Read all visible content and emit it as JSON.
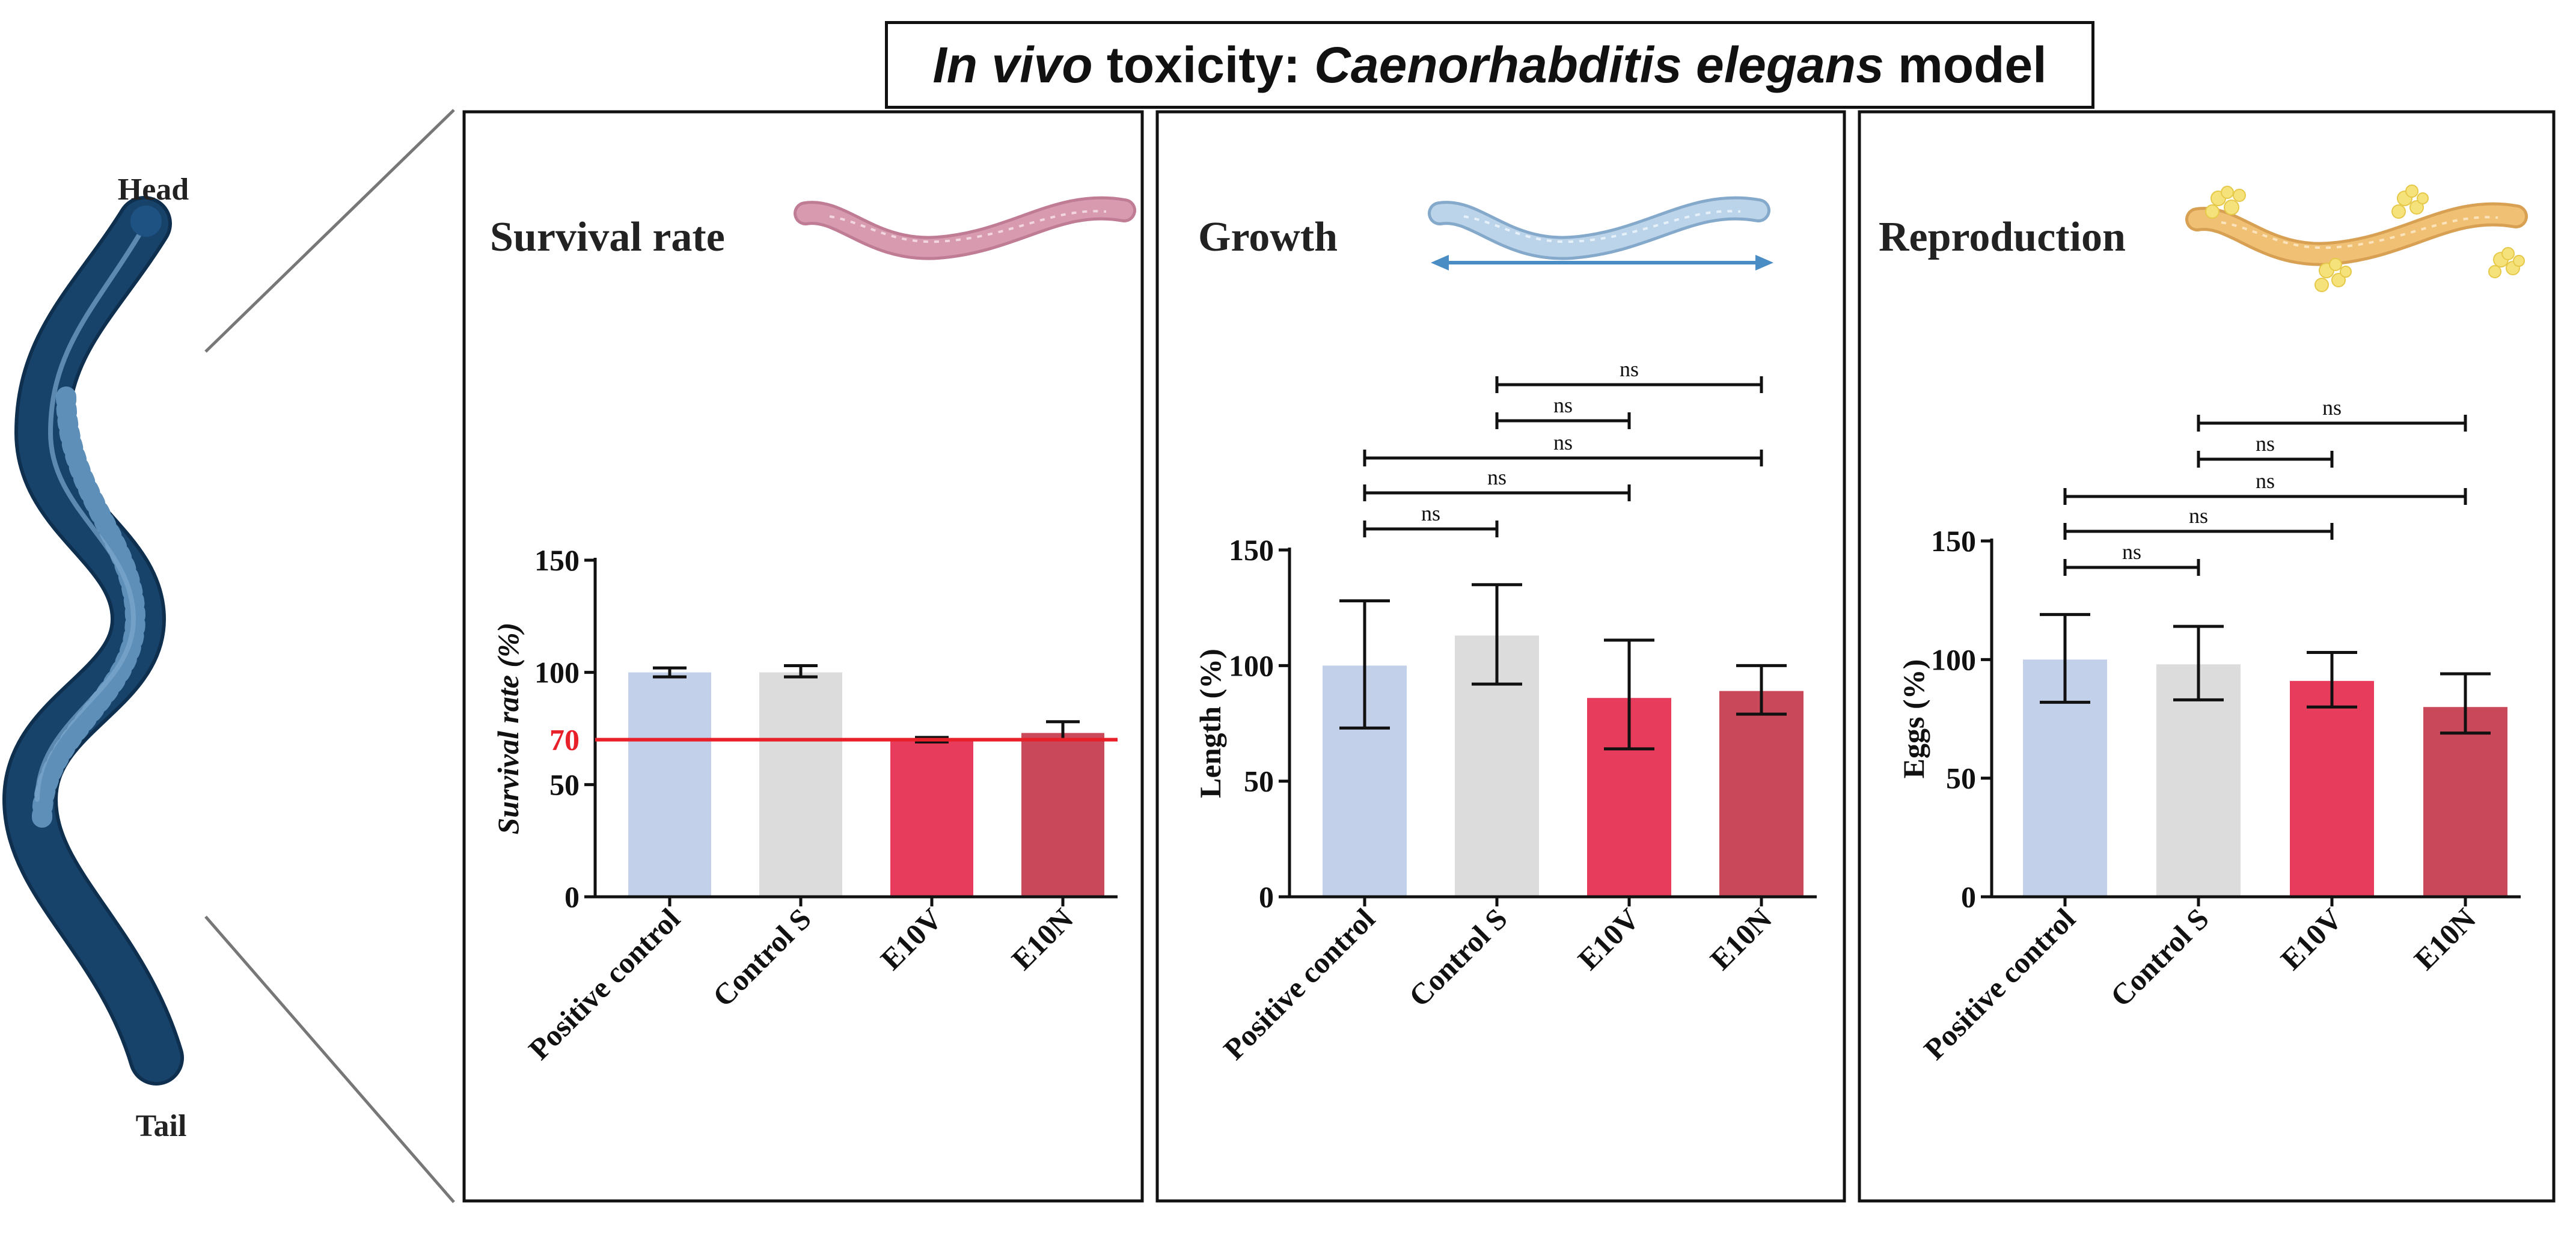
{
  "title": {
    "italic_1": "In vivo",
    "plain_1": " toxicity: ",
    "italic_2": "Caenorhabditis elegans",
    "plain_2": " model"
  },
  "worm_labels": {
    "head": "Head",
    "tail": "Tail"
  },
  "colors": {
    "positive_control": "#c2d0ea",
    "control_s": "#dcdcdc",
    "e10v": "#e83c5c",
    "e10n": "#c9495a",
    "threshold": "#e8202a",
    "worm_body": "#17436b",
    "survival_worm": "#d79aae",
    "growth_worm": "#a9c7e2",
    "reproduction_worm": "#f0c074",
    "eggs": "#f6e27a",
    "arrow": "#4a8cc4"
  },
  "chart_data": [
    {
      "type": "bar",
      "panel_title": "Survival rate",
      "categories": [
        "Positive control",
        "Control S",
        "E10V",
        "E10N"
      ],
      "values": [
        100,
        100,
        70,
        73
      ],
      "errors": [
        [
          98,
          102
        ],
        [
          98,
          103
        ],
        [
          69,
          71
        ],
        [
          70,
          78
        ]
      ],
      "ylabel": "Survival rate (%)",
      "ylim": [
        0,
        150
      ],
      "yticks": [
        0,
        50,
        100,
        150
      ],
      "threshold": {
        "value": 70,
        "label": "70"
      },
      "comparisons": []
    },
    {
      "type": "bar",
      "panel_title": "Growth",
      "categories": [
        "Positive control",
        "Control S",
        "E10V",
        "E10N"
      ],
      "values": [
        100,
        113,
        86,
        89
      ],
      "errors": [
        [
          73,
          128
        ],
        [
          92,
          135
        ],
        [
          64,
          111
        ],
        [
          79,
          100
        ]
      ],
      "ylabel": "Length (%)",
      "ylim": [
        0,
        150
      ],
      "yticks": [
        0,
        50,
        100,
        150
      ],
      "comparisons": [
        {
          "from": 0,
          "to": 1,
          "label": "ns"
        },
        {
          "from": 0,
          "to": 2,
          "label": "ns"
        },
        {
          "from": 0,
          "to": 3,
          "label": "ns"
        },
        {
          "from": 1,
          "to": 2,
          "label": "ns"
        },
        {
          "from": 1,
          "to": 3,
          "label": "ns"
        }
      ]
    },
    {
      "type": "bar",
      "panel_title": "Reproduction",
      "categories": [
        "Positive control",
        "Control S",
        "E10V",
        "E10N"
      ],
      "values": [
        100,
        98,
        91,
        80
      ],
      "errors": [
        [
          82,
          119
        ],
        [
          83,
          114
        ],
        [
          80,
          103
        ],
        [
          69,
          94
        ]
      ],
      "ylabel": "Eggs (%)",
      "ylim": [
        0,
        150
      ],
      "yticks": [
        0,
        50,
        100,
        150
      ],
      "comparisons": [
        {
          "from": 0,
          "to": 1,
          "label": "ns"
        },
        {
          "from": 0,
          "to": 2,
          "label": "ns"
        },
        {
          "from": 0,
          "to": 3,
          "label": "ns"
        },
        {
          "from": 1,
          "to": 2,
          "label": "ns"
        },
        {
          "from": 1,
          "to": 3,
          "label": "ns"
        }
      ]
    }
  ]
}
